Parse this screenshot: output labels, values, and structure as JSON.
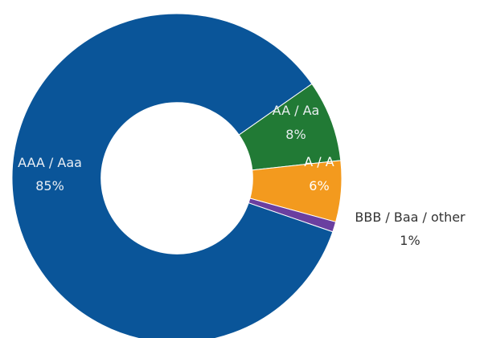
{
  "chart_data": {
    "type": "pie",
    "style": "donut",
    "start_angle_deg": 35,
    "inner_radius_ratio": 0.46,
    "slices": [
      {
        "label": "AA / Aa",
        "value": 8,
        "value_label": "8%",
        "color": "#217a35",
        "label_color": "#e8eef0",
        "label_position": "inside"
      },
      {
        "label": "A / A",
        "value": 6,
        "value_label": "6%",
        "color": "#f39a1e",
        "label_color": "#ffffff",
        "label_position": "inside"
      },
      {
        "label": "BBB / Baa / other",
        "value": 1,
        "value_label": "1%",
        "color": "#6a3fa0",
        "label_color": "#333333",
        "label_position": "outside"
      },
      {
        "label": "AAA / Aaa",
        "value": 85,
        "value_label": "85%",
        "color": "#0a5599",
        "label_color": "#e9eef4",
        "label_position": "inside"
      }
    ]
  }
}
